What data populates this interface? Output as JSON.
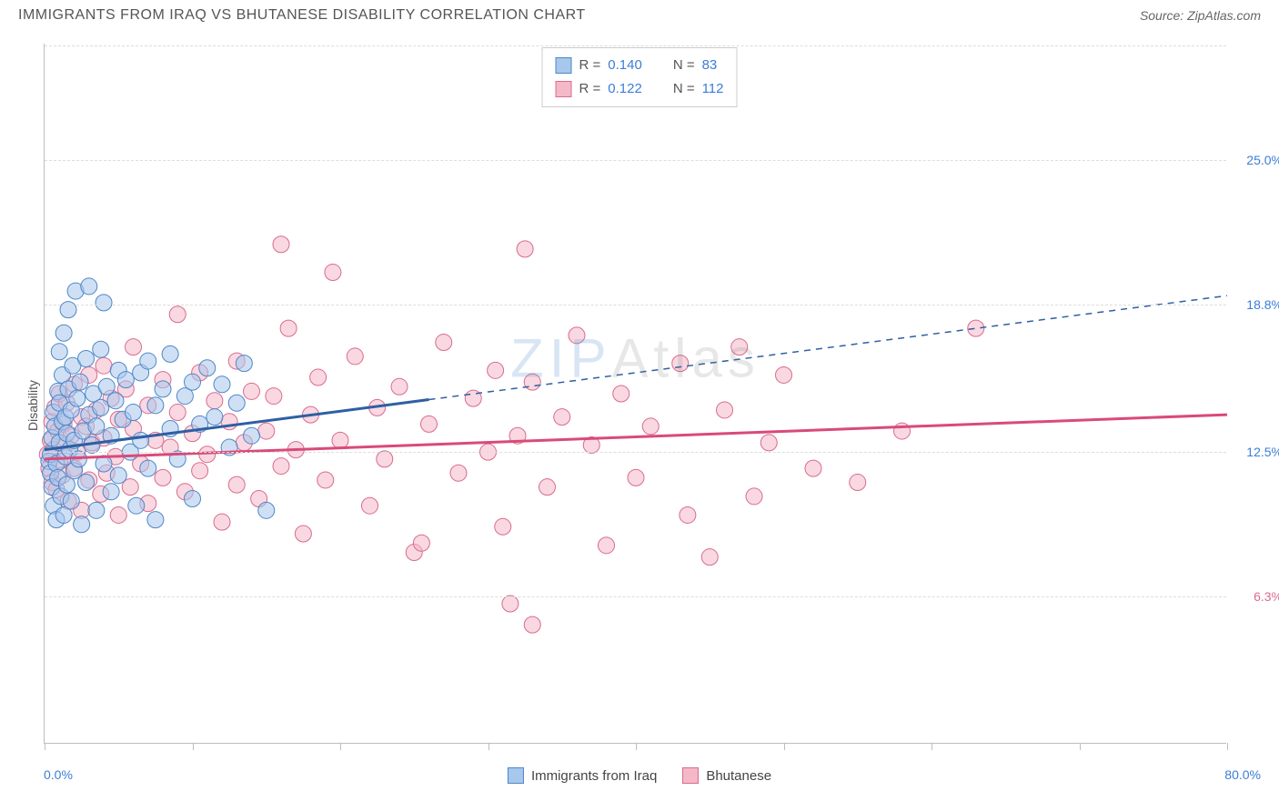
{
  "header": {
    "title": "IMMIGRANTS FROM IRAQ VS BHUTANESE DISABILITY CORRELATION CHART",
    "source": "Source: ZipAtlas.com"
  },
  "chart": {
    "type": "scatter",
    "y_label": "Disability",
    "x_range": [
      0,
      80
    ],
    "y_range": [
      0,
      30
    ],
    "x_min_label": "0.0%",
    "x_max_label": "80.0%",
    "x_label_color": "#3b7dd8",
    "y_ticks": [
      {
        "value": 6.3,
        "label": "6.3%",
        "color": "#d96b8f"
      },
      {
        "value": 12.5,
        "label": "12.5%",
        "color": "#3b7dd8"
      },
      {
        "value": 18.8,
        "label": "18.8%",
        "color": "#3b7dd8"
      },
      {
        "value": 25.0,
        "label": "25.0%",
        "color": "#3b7dd8"
      }
    ],
    "x_ticks_at": [
      0,
      10,
      20,
      30,
      40,
      50,
      60,
      70,
      80
    ],
    "background_color": "#ffffff",
    "grid_color": "#dddddd",
    "axis_color": "#bdbdbd",
    "marker_radius": 9,
    "marker_opacity": 0.55,
    "watermark_text_1": "ZIP",
    "watermark_text_2": "Atlas"
  },
  "series": {
    "iraq": {
      "label": "Immigrants from Iraq",
      "fill": "#a7c7ec",
      "stroke": "#4e87c7",
      "line_color": "#2e5fa3",
      "r_value": "0.140",
      "n_value": "83",
      "trend": {
        "x1": 0,
        "y1": 12.6,
        "x2": 80,
        "y2": 19.2,
        "solid_until_x": 26
      },
      "points": [
        [
          0.3,
          12.1
        ],
        [
          0.4,
          11.6
        ],
        [
          0.4,
          12.4
        ],
        [
          0.5,
          13.1
        ],
        [
          0.5,
          11.0
        ],
        [
          0.6,
          14.2
        ],
        [
          0.6,
          10.2
        ],
        [
          0.7,
          13.6
        ],
        [
          0.8,
          12.0
        ],
        [
          0.8,
          9.6
        ],
        [
          0.9,
          15.1
        ],
        [
          0.9,
          11.4
        ],
        [
          1.0,
          14.6
        ],
        [
          1.0,
          12.9
        ],
        [
          1.0,
          16.8
        ],
        [
          1.1,
          10.6
        ],
        [
          1.2,
          13.8
        ],
        [
          1.2,
          15.8
        ],
        [
          1.3,
          9.8
        ],
        [
          1.3,
          17.6
        ],
        [
          1.4,
          12.3
        ],
        [
          1.4,
          14.0
        ],
        [
          1.5,
          11.1
        ],
        [
          1.5,
          13.3
        ],
        [
          1.6,
          18.6
        ],
        [
          1.6,
          15.2
        ],
        [
          1.7,
          12.6
        ],
        [
          1.8,
          10.4
        ],
        [
          1.8,
          14.3
        ],
        [
          1.9,
          16.2
        ],
        [
          2.0,
          13.0
        ],
        [
          2.0,
          11.7
        ],
        [
          2.1,
          19.4
        ],
        [
          2.2,
          14.8
        ],
        [
          2.3,
          12.2
        ],
        [
          2.4,
          15.5
        ],
        [
          2.5,
          9.4
        ],
        [
          2.6,
          13.4
        ],
        [
          2.8,
          16.5
        ],
        [
          2.8,
          11.2
        ],
        [
          3.0,
          14.1
        ],
        [
          3.0,
          19.6
        ],
        [
          3.2,
          12.8
        ],
        [
          3.3,
          15.0
        ],
        [
          3.5,
          13.6
        ],
        [
          3.5,
          10.0
        ],
        [
          3.8,
          16.9
        ],
        [
          3.8,
          14.4
        ],
        [
          4.0,
          18.9
        ],
        [
          4.0,
          12.0
        ],
        [
          4.2,
          15.3
        ],
        [
          4.5,
          13.2
        ],
        [
          4.5,
          10.8
        ],
        [
          4.8,
          14.7
        ],
        [
          5.0,
          16.0
        ],
        [
          5.0,
          11.5
        ],
        [
          5.3,
          13.9
        ],
        [
          5.5,
          15.6
        ],
        [
          5.8,
          12.5
        ],
        [
          6.0,
          14.2
        ],
        [
          6.2,
          10.2
        ],
        [
          6.5,
          15.9
        ],
        [
          6.5,
          13.0
        ],
        [
          7.0,
          16.4
        ],
        [
          7.0,
          11.8
        ],
        [
          7.5,
          14.5
        ],
        [
          7.5,
          9.6
        ],
        [
          8.0,
          15.2
        ],
        [
          8.5,
          13.5
        ],
        [
          8.5,
          16.7
        ],
        [
          9.0,
          12.2
        ],
        [
          9.5,
          14.9
        ],
        [
          10.0,
          15.5
        ],
        [
          10.0,
          10.5
        ],
        [
          10.5,
          13.7
        ],
        [
          11.0,
          16.1
        ],
        [
          11.5,
          14.0
        ],
        [
          12.0,
          15.4
        ],
        [
          12.5,
          12.7
        ],
        [
          13.0,
          14.6
        ],
        [
          13.5,
          16.3
        ],
        [
          14.0,
          13.2
        ],
        [
          15.0,
          10.0
        ]
      ]
    },
    "bhutanese": {
      "label": "Bhutanese",
      "fill": "#f4b8c8",
      "stroke": "#d96b8f",
      "line_color": "#d94a7a",
      "r_value": "0.122",
      "n_value": "112",
      "trend": {
        "x1": 0,
        "y1": 12.2,
        "x2": 80,
        "y2": 14.1,
        "solid_until_x": 80
      },
      "points": [
        [
          0.2,
          12.4
        ],
        [
          0.3,
          11.8
        ],
        [
          0.4,
          13.0
        ],
        [
          0.5,
          11.2
        ],
        [
          0.5,
          13.8
        ],
        [
          0.6,
          12.6
        ],
        [
          0.7,
          14.4
        ],
        [
          0.8,
          10.9
        ],
        [
          0.9,
          13.4
        ],
        [
          1.0,
          12.1
        ],
        [
          1.0,
          15.0
        ],
        [
          1.2,
          11.5
        ],
        [
          1.3,
          13.7
        ],
        [
          1.4,
          12.8
        ],
        [
          1.5,
          14.6
        ],
        [
          1.6,
          10.4
        ],
        [
          1.8,
          13.2
        ],
        [
          2.0,
          15.4
        ],
        [
          2.0,
          11.8
        ],
        [
          2.2,
          12.5
        ],
        [
          2.5,
          14.0
        ],
        [
          2.5,
          10.0
        ],
        [
          2.8,
          13.6
        ],
        [
          3.0,
          11.3
        ],
        [
          3.0,
          15.8
        ],
        [
          3.2,
          12.9
        ],
        [
          3.5,
          14.3
        ],
        [
          3.8,
          10.7
        ],
        [
          4.0,
          13.1
        ],
        [
          4.0,
          16.2
        ],
        [
          4.2,
          11.6
        ],
        [
          4.5,
          14.8
        ],
        [
          4.8,
          12.3
        ],
        [
          5.0,
          13.9
        ],
        [
          5.0,
          9.8
        ],
        [
          5.5,
          15.2
        ],
        [
          5.8,
          11.0
        ],
        [
          6.0,
          13.5
        ],
        [
          6.0,
          17.0
        ],
        [
          6.5,
          12.0
        ],
        [
          7.0,
          14.5
        ],
        [
          7.0,
          10.3
        ],
        [
          7.5,
          13.0
        ],
        [
          8.0,
          15.6
        ],
        [
          8.0,
          11.4
        ],
        [
          8.5,
          12.7
        ],
        [
          9.0,
          14.2
        ],
        [
          9.0,
          18.4
        ],
        [
          9.5,
          10.8
        ],
        [
          10.0,
          13.3
        ],
        [
          10.5,
          15.9
        ],
        [
          10.5,
          11.7
        ],
        [
          11.0,
          12.4
        ],
        [
          11.5,
          14.7
        ],
        [
          12.0,
          9.5
        ],
        [
          12.5,
          13.8
        ],
        [
          13.0,
          16.4
        ],
        [
          13.0,
          11.1
        ],
        [
          13.5,
          12.9
        ],
        [
          14.0,
          15.1
        ],
        [
          14.5,
          10.5
        ],
        [
          15.0,
          13.4
        ],
        [
          15.5,
          14.9
        ],
        [
          16.0,
          11.9
        ],
        [
          16.5,
          17.8
        ],
        [
          17.0,
          12.6
        ],
        [
          17.5,
          9.0
        ],
        [
          18.0,
          14.1
        ],
        [
          18.5,
          15.7
        ],
        [
          19.0,
          11.3
        ],
        [
          16.0,
          21.4
        ],
        [
          19.5,
          20.2
        ],
        [
          20.0,
          13.0
        ],
        [
          21.0,
          16.6
        ],
        [
          22.0,
          10.2
        ],
        [
          22.5,
          14.4
        ],
        [
          23.0,
          12.2
        ],
        [
          24.0,
          15.3
        ],
        [
          25.0,
          8.2
        ],
        [
          25.5,
          8.6
        ],
        [
          26.0,
          13.7
        ],
        [
          27.0,
          17.2
        ],
        [
          28.0,
          11.6
        ],
        [
          29.0,
          14.8
        ],
        [
          30.0,
          12.5
        ],
        [
          30.5,
          16.0
        ],
        [
          31.0,
          9.3
        ],
        [
          32.0,
          13.2
        ],
        [
          32.5,
          21.2
        ],
        [
          33.0,
          15.5
        ],
        [
          34.0,
          11.0
        ],
        [
          33.0,
          5.1
        ],
        [
          31.5,
          6.0
        ],
        [
          35.0,
          14.0
        ],
        [
          36.0,
          17.5
        ],
        [
          37.0,
          12.8
        ],
        [
          38.0,
          8.5
        ],
        [
          39.0,
          15.0
        ],
        [
          40.0,
          11.4
        ],
        [
          41.0,
          13.6
        ],
        [
          43.0,
          16.3
        ],
        [
          43.5,
          9.8
        ],
        [
          45.0,
          8.0
        ],
        [
          46.0,
          14.3
        ],
        [
          47.0,
          17.0
        ],
        [
          48.0,
          10.6
        ],
        [
          49.0,
          12.9
        ],
        [
          50.0,
          15.8
        ],
        [
          52.0,
          11.8
        ],
        [
          55.0,
          11.2
        ],
        [
          58.0,
          13.4
        ],
        [
          63.0,
          17.8
        ]
      ]
    }
  },
  "legend_top": {
    "r_label": "R =",
    "n_label": "N ="
  }
}
